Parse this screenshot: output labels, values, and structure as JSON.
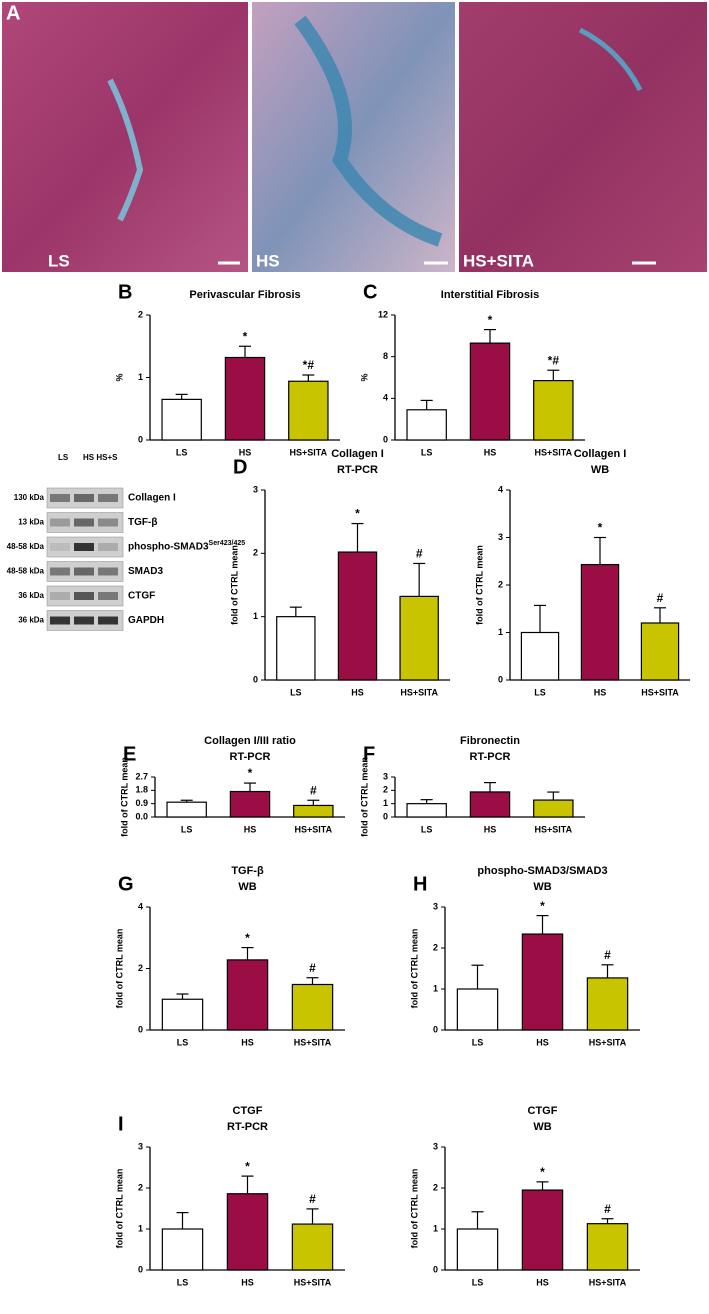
{
  "panel_a": {
    "letter": "A",
    "labels": [
      "LS",
      "HS",
      "HS+SITA"
    ]
  },
  "blot": {
    "lanes": [
      "LS",
      "HS HS+S"
    ],
    "rows": [
      {
        "kda": "130 kDa",
        "label": "Collagen I"
      },
      {
        "kda": "13 kDa",
        "label": "TGF-β"
      },
      {
        "kda": "48-58 kDa",
        "label": "phospho-SMAD3",
        "sup": "Ser423/425"
      },
      {
        "kda": "48-58 kDa",
        "label": "SMAD3"
      },
      {
        "kda": "36 kDa",
        "label": "CTGF"
      },
      {
        "kda": "36 kDa",
        "label": "GAPDH"
      }
    ]
  },
  "chart_data": [
    {
      "type": "bar",
      "panel": "B",
      "title": "Perivascular Fibrosis",
      "ylabel": "%",
      "categories": [
        "LS",
        "HS",
        "HS+SITA"
      ],
      "values": [
        0.65,
        1.32,
        0.94
      ],
      "errors": [
        0.08,
        0.18,
        0.1
      ],
      "annotations": [
        null,
        "*",
        "*#"
      ],
      "colors": [
        "#ffffff",
        "#9b0d45",
        "#c8c400"
      ],
      "ylim": [
        0,
        2
      ],
      "yticks": [
        0,
        1,
        2
      ]
    },
    {
      "type": "bar",
      "panel": "C",
      "title": "Interstitial Fibrosis",
      "ylabel": "%",
      "categories": [
        "LS",
        "HS",
        "HS+SITA"
      ],
      "values": [
        2.9,
        9.3,
        5.7
      ],
      "errors": [
        0.9,
        1.3,
        1.0
      ],
      "annotations": [
        null,
        "*",
        "*#"
      ],
      "colors": [
        "#ffffff",
        "#9b0d45",
        "#c8c400"
      ],
      "ylim": [
        0,
        12
      ],
      "yticks": [
        0,
        4,
        8,
        12
      ]
    },
    {
      "type": "bar",
      "panel": "D",
      "title": "Collagen I",
      "subtitle": "RT-PCR",
      "ylabel": "fold of CTRL mean",
      "categories": [
        "LS",
        "HS",
        "HS+SITA"
      ],
      "values": [
        1.0,
        2.02,
        1.32
      ],
      "errors": [
        0.15,
        0.45,
        0.52
      ],
      "annotations": [
        null,
        "*",
        "#"
      ],
      "colors": [
        "#ffffff",
        "#9b0d45",
        "#c8c400"
      ],
      "ylim": [
        0,
        3
      ],
      "yticks": [
        0,
        1,
        2,
        3
      ]
    },
    {
      "type": "bar",
      "title": "Collagen I",
      "subtitle": "WB",
      "ylabel": "fold of CTRL mean",
      "categories": [
        "LS",
        "HS",
        "HS+SITA"
      ],
      "values": [
        1.0,
        2.43,
        1.2
      ],
      "errors": [
        0.57,
        0.57,
        0.32
      ],
      "annotations": [
        null,
        "*",
        "#"
      ],
      "colors": [
        "#ffffff",
        "#9b0d45",
        "#c8c400"
      ],
      "ylim": [
        0,
        4
      ],
      "yticks": [
        0,
        1,
        2,
        3,
        4
      ]
    },
    {
      "type": "bar",
      "panel": "E",
      "title": "Collagen I/III ratio",
      "subtitle": "RT-PCR",
      "ylabel": "fold of CTRL mean",
      "categories": [
        "LS",
        "HS",
        "HS+SITA"
      ],
      "values": [
        1.0,
        1.72,
        0.78
      ],
      "errors": [
        0.13,
        0.57,
        0.35
      ],
      "annotations": [
        null,
        "*",
        "#"
      ],
      "colors": [
        "#ffffff",
        "#9b0d45",
        "#c8c400"
      ],
      "ylim": [
        0,
        2.7
      ],
      "yticks": [
        {
          "value": 0,
          "label": "0.0"
        },
        0.9,
        1.8,
        2.7
      ]
    },
    {
      "type": "bar",
      "panel": "F",
      "title": "Fibronectin",
      "subtitle": "RT-PCR",
      "ylabel": "fold of CTRL mean",
      "categories": [
        "LS",
        "HS",
        "HS+SITA"
      ],
      "values": [
        1.0,
        1.88,
        1.27
      ],
      "errors": [
        0.3,
        0.7,
        0.6
      ],
      "colors": [
        "#ffffff",
        "#9b0d45",
        "#c8c400"
      ],
      "ylim": [
        0,
        3
      ],
      "yticks": [
        0,
        1,
        2,
        3
      ]
    },
    {
      "type": "bar",
      "panel": "G",
      "title": "TGF-β",
      "subtitle": "WB",
      "ylabel": "fold of CTRL mean",
      "categories": [
        "LS",
        "HS",
        "HS+SITA"
      ],
      "values": [
        1.0,
        2.28,
        1.48
      ],
      "errors": [
        0.17,
        0.4,
        0.22
      ],
      "annotations": [
        null,
        "*",
        "#"
      ],
      "colors": [
        "#ffffff",
        "#9b0d45",
        "#c8c400"
      ],
      "ylim": [
        0,
        4
      ],
      "yticks": [
        0,
        2,
        4
      ]
    },
    {
      "type": "bar",
      "panel": "H",
      "title": "phospho-SMAD3/SMAD3",
      "subtitle": "WB",
      "ylabel": "fold of CTRL mean",
      "categories": [
        "LS",
        "HS",
        "HS+SITA"
      ],
      "values": [
        1.0,
        2.34,
        1.27
      ],
      "errors": [
        0.58,
        0.45,
        0.32
      ],
      "annotations": [
        null,
        "*",
        "#"
      ],
      "colors": [
        "#ffffff",
        "#9b0d45",
        "#c8c400"
      ],
      "ylim": [
        0,
        3
      ],
      "yticks": [
        0,
        1,
        2,
        3
      ]
    },
    {
      "type": "bar",
      "panel": "I",
      "title": "CTGF",
      "subtitle": "RT-PCR",
      "ylabel": "fold of CTRL mean",
      "categories": [
        "LS",
        "HS",
        "HS+SITA"
      ],
      "values": [
        1.0,
        1.86,
        1.12
      ],
      "errors": [
        0.4,
        0.43,
        0.37
      ],
      "annotations": [
        null,
        "*",
        "#"
      ],
      "colors": [
        "#ffffff",
        "#9b0d45",
        "#c8c400"
      ],
      "ylim": [
        0,
        3
      ],
      "yticks": [
        0,
        1,
        2,
        3
      ]
    },
    {
      "type": "bar",
      "title": "CTGF",
      "subtitle": "WB",
      "ylabel": "fold of CTRL mean",
      "categories": [
        "LS",
        "HS",
        "HS+SITA"
      ],
      "values": [
        1.0,
        1.95,
        1.13
      ],
      "errors": [
        0.42,
        0.2,
        0.12
      ],
      "annotations": [
        null,
        "*",
        "#"
      ],
      "colors": [
        "#ffffff",
        "#9b0d45",
        "#c8c400"
      ],
      "ylim": [
        0,
        3
      ],
      "yticks": [
        0,
        1,
        2,
        3
      ]
    }
  ]
}
